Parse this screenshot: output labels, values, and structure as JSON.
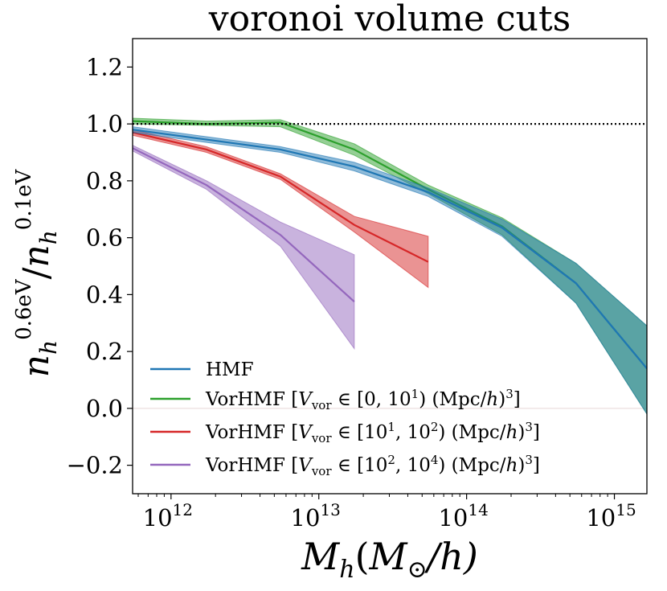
{
  "chart_data": {
    "type": "line",
    "title": "voronoi volume cuts",
    "xlabel": "M_h (M_⊙ / h)",
    "ylabel": "n_h^{0.6eV} / n_h^{0.1eV}",
    "ylabel_parts": {
      "n1": "n",
      "sub1": "h",
      "sup1": "0.6eV",
      "slash": "/",
      "n2": "n",
      "sub2": "h",
      "sup2": "0.1eV"
    },
    "xlabel_parts": {
      "m": "M",
      "sub": "h",
      "open": "(",
      "msun": "M",
      "sun_sub": "⊙",
      "slash": "/h)"
    },
    "xscale": "log",
    "xlim_log10": [
      11.74,
      15.22
    ],
    "ylim": [
      -0.3,
      1.3
    ],
    "xticks": [
      {
        "base": "10",
        "exp": "12",
        "log10": 12
      },
      {
        "base": "10",
        "exp": "13",
        "log10": 13
      },
      {
        "base": "10",
        "exp": "14",
        "log10": 14
      },
      {
        "base": "10",
        "exp": "15",
        "log10": 15
      }
    ],
    "yticks": [
      "−0.2",
      "0.0",
      "0.2",
      "0.4",
      "0.6",
      "0.8",
      "1.0",
      "1.2"
    ],
    "ytick_values": [
      -0.2,
      0.0,
      0.2,
      0.4,
      0.6,
      0.8,
      1.0,
      1.2
    ],
    "reference_line": 1.0,
    "legend_position": "lower-left",
    "series": [
      {
        "name": "HMF",
        "color": "#1f77b4",
        "x_log10": [
          11.74,
          12.24,
          12.74,
          13.24,
          13.74,
          14.24,
          14.74,
          15.22
        ],
        "values": [
          0.98,
          0.945,
          0.91,
          0.85,
          0.76,
          0.635,
          0.44,
          0.14
        ],
        "lower": [
          0.97,
          0.935,
          0.9,
          0.835,
          0.745,
          0.605,
          0.37,
          -0.02
        ],
        "upper": [
          0.99,
          0.955,
          0.92,
          0.865,
          0.775,
          0.665,
          0.51,
          0.29
        ]
      },
      {
        "name": "VorHMF",
        "label_parts": {
          "main": "VorHMF [",
          "v": "V",
          "vsub": "vor",
          "in": " ∈ [0, 10",
          "e1": "1",
          "e2": "",
          "mid": "",
          "mpc": ") (Mpc/",
          "h": "h",
          "end": ")",
          "cube": "3",
          "close": "]"
        },
        "color": "#2ca02c",
        "x_log10": [
          11.74,
          12.24,
          12.74,
          13.24,
          13.74,
          14.24,
          14.74,
          15.22
        ],
        "values": [
          1.01,
          1.0,
          1.005,
          0.91,
          0.77,
          0.64,
          0.44,
          0.14
        ],
        "lower": [
          1.0,
          0.995,
          0.99,
          0.89,
          0.755,
          0.61,
          0.37,
          -0.02
        ],
        "upper": [
          1.02,
          1.01,
          1.015,
          0.93,
          0.785,
          0.67,
          0.51,
          0.29
        ]
      },
      {
        "name": "VorHMF",
        "label_parts": {
          "main": "VorHMF [",
          "v": "V",
          "vsub": "vor",
          "in": " ∈ [10",
          "e1": "1",
          "mid": ", 10",
          "e2": "2",
          "mpc": ") (Mpc/",
          "h": "h",
          "end": ")",
          "cube": "3",
          "close": "]"
        },
        "color": "#d62728",
        "x_log10": [
          11.74,
          12.24,
          12.74,
          13.24,
          13.74
        ],
        "values": [
          0.97,
          0.91,
          0.815,
          0.645,
          0.515
        ],
        "lower": [
          0.96,
          0.9,
          0.805,
          0.62,
          0.425
        ],
        "upper": [
          0.98,
          0.92,
          0.825,
          0.675,
          0.605
        ]
      },
      {
        "name": "VorHMF",
        "label_parts": {
          "main": "VorHMF [",
          "v": "V",
          "vsub": "vor",
          "in": " ∈ [10",
          "e1": "2",
          "mid": ", 10",
          "e2": "4",
          "mpc": ") (Mpc/",
          "h": "h",
          "end": ")",
          "cube": "3",
          "close": "]"
        },
        "color": "#9467bd",
        "x_log10": [
          11.74,
          12.24,
          12.74,
          13.24
        ],
        "values": [
          0.915,
          0.785,
          0.61,
          0.375
        ],
        "lower": [
          0.905,
          0.77,
          0.57,
          0.21
        ],
        "upper": [
          0.925,
          0.8,
          0.655,
          0.54
        ]
      }
    ]
  }
}
